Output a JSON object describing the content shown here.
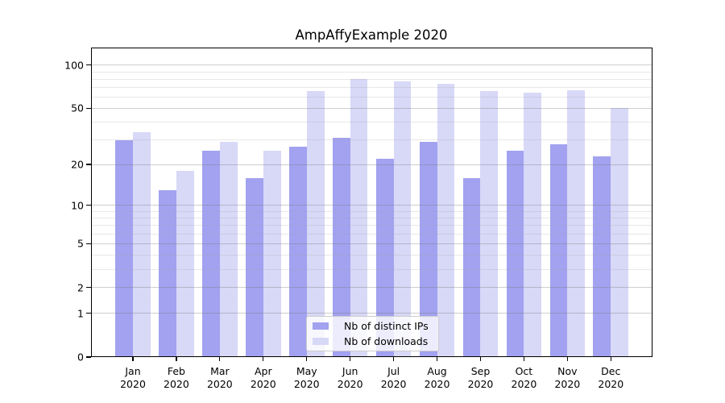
{
  "chart_data": {
    "type": "bar",
    "title": "AmpAffyExample 2020",
    "categories": [
      "Jan",
      "Feb",
      "Mar",
      "Apr",
      "May",
      "Jun",
      "Jul",
      "Aug",
      "Sep",
      "Oct",
      "Nov",
      "Dec"
    ],
    "x_tick_second_line": "2020",
    "series": [
      {
        "name": "Nb of distinct IPs",
        "color": "#a2a2f0",
        "values": [
          30,
          13,
          25,
          16,
          27,
          31,
          22,
          29,
          16,
          25,
          28,
          23
        ]
      },
      {
        "name": "Nb of downloads",
        "color": "#d8d8f7",
        "values": [
          34,
          18,
          29,
          25,
          66,
          80,
          77,
          74,
          66,
          64,
          67,
          50
        ]
      }
    ],
    "xlabel": "",
    "ylabel": "",
    "yscale": "symlog (y proportional to ln(1+v))",
    "yticks": [
      0,
      1,
      2,
      5,
      10,
      20,
      50,
      100
    ],
    "minor_yticks": [
      3,
      4,
      6,
      7,
      8,
      9,
      30,
      40,
      60,
      70,
      80,
      90
    ],
    "ylim": [
      0,
      132
    ],
    "grid": true,
    "legend_position": "lower center"
  },
  "colors": {
    "bar_distinct_ips": "#a2a2f0",
    "bar_downloads": "#d8d8f7",
    "grid_major": "#d2d2d2",
    "grid_minor": "#e8e8e8",
    "axis": "#000000",
    "legend_border": "#cccccc"
  }
}
